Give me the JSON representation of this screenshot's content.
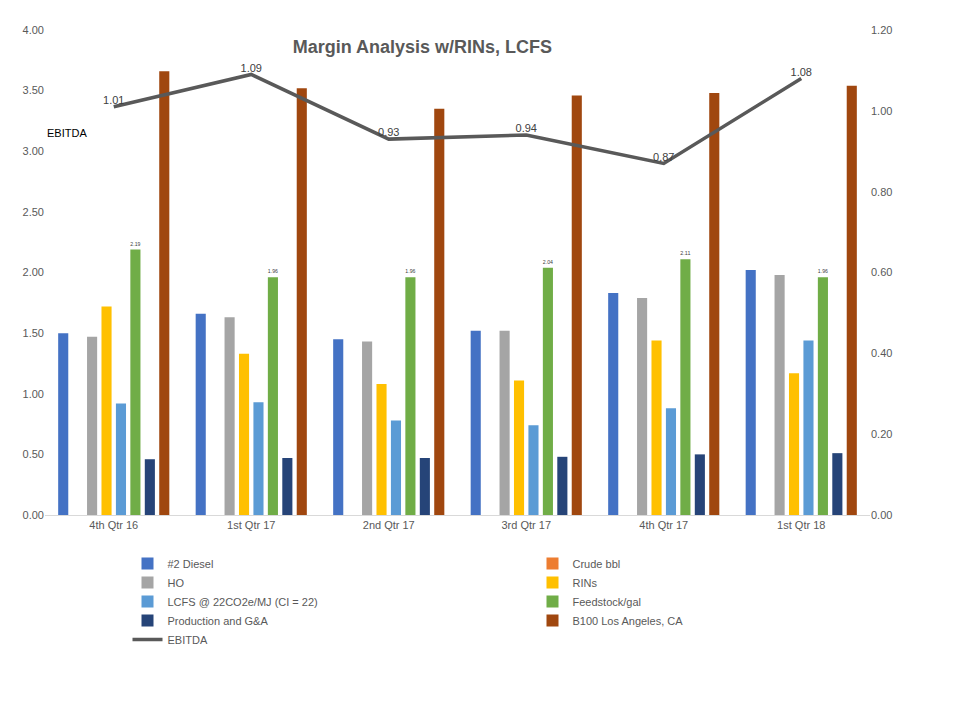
{
  "chart_data": {
    "type": "bar",
    "title": "Margin Analysis w/RINs, LCFS",
    "annotations": [
      "EBITDA"
    ],
    "categories": [
      "4th Qtr 16",
      "1st Qtr 17",
      "2nd Qtr 17",
      "3rd Qtr 17",
      "4th Qtr 17",
      "1st Qtr 18"
    ],
    "series": [
      {
        "name": "#2 Diesel",
        "color": "#4472c4",
        "values": [
          1.5,
          1.66,
          1.45,
          1.52,
          1.83,
          2.02
        ]
      },
      {
        "name": "Crude bbl",
        "color": "#ed7d31",
        "values": [
          null,
          null,
          null,
          null,
          null,
          null
        ]
      },
      {
        "name": "HO",
        "color": "#a5a5a5",
        "values": [
          1.47,
          1.63,
          1.43,
          1.52,
          1.79,
          1.98
        ]
      },
      {
        "name": "RINs",
        "color": "#ffc000",
        "values": [
          1.72,
          1.33,
          1.08,
          1.11,
          1.44,
          1.17
        ]
      },
      {
        "name": "LCFS @ 22CO2e/MJ (CI = 22)",
        "color": "#5b9bd5",
        "values": [
          0.92,
          0.93,
          0.78,
          0.74,
          0.88,
          1.44
        ]
      },
      {
        "name": "Feedstock/gal",
        "color": "#70ad47",
        "values": [
          2.19,
          1.96,
          1.96,
          2.04,
          2.11,
          1.96
        ],
        "data_labels": true
      },
      {
        "name": "Production and G&A",
        "color": "#264478",
        "values": [
          0.46,
          0.47,
          0.47,
          0.48,
          0.5,
          0.51
        ]
      },
      {
        "name": "B100 Los Angeles, CA",
        "color": "#a0470f",
        "values": [
          3.66,
          3.52,
          3.35,
          3.46,
          3.48,
          3.54
        ]
      },
      {
        "name": "EBITDA",
        "color": "#595959",
        "type": "line",
        "axis": "y2",
        "values": [
          1.01,
          1.09,
          0.93,
          0.94,
          0.87,
          1.08
        ],
        "data_labels": true
      }
    ],
    "ylim": [
      0,
      4
    ],
    "yticks": [
      {
        "value": 0,
        "label": "0.00"
      },
      {
        "value": 0.5,
        "label": "0.50"
      },
      {
        "value": 1,
        "label": "1.00"
      },
      {
        "value": 1.5,
        "label": "1.50"
      },
      {
        "value": 2,
        "label": "2.00"
      },
      {
        "value": 2.5,
        "label": "2.50"
      },
      {
        "value": 3,
        "label": "3.00"
      },
      {
        "value": 3.5,
        "label": "3.50"
      },
      {
        "value": 4,
        "label": "4.00"
      }
    ],
    "y2lim": [
      0,
      1.2
    ],
    "y2ticks": [
      {
        "value": 0,
        "label": "0.00"
      },
      {
        "value": 0.2,
        "label": "0.20"
      },
      {
        "value": 0.4,
        "label": "0.40"
      },
      {
        "value": 0.6,
        "label": "0.60"
      },
      {
        "value": 0.8,
        "label": "0.80"
      },
      {
        "value": 1,
        "label": "1.00"
      },
      {
        "value": 1.2,
        "label": "1.20"
      }
    ],
    "grid": false,
    "legend": "bottom"
  }
}
